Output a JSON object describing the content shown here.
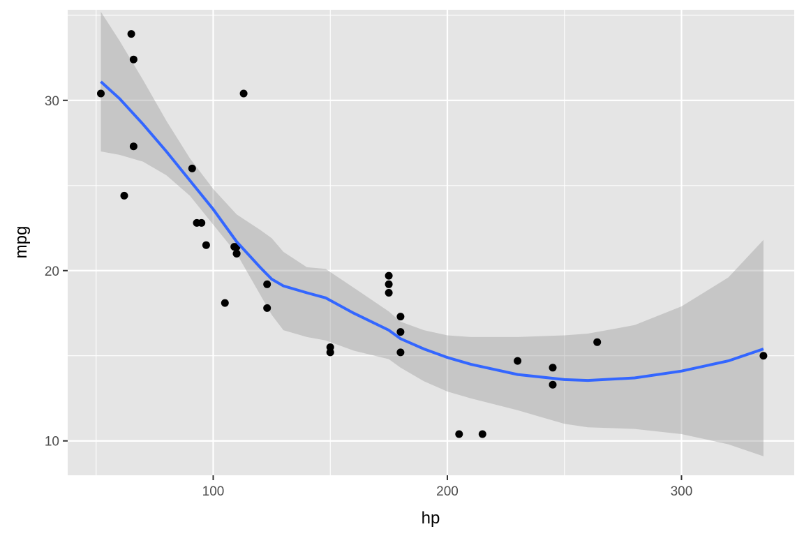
{
  "chart_data": {
    "type": "scatter",
    "title": "",
    "xlabel": "hp",
    "ylabel": "mpg",
    "xlim": [
      37.85,
      348.15
    ],
    "ylim": [
      7.98,
      35.32
    ],
    "x_ticks": [
      100,
      200,
      300
    ],
    "y_ticks": [
      10,
      20,
      30
    ],
    "grid": true,
    "legend": "none",
    "colors": {
      "panel": "#e5e5e5",
      "grid": "#ffffff",
      "points": "#000000",
      "smooth_line": "#3366ff",
      "ribbon": "#999999"
    },
    "points": {
      "x": [
        110,
        110,
        93,
        110,
        175,
        105,
        245,
        62,
        95,
        123,
        123,
        180,
        180,
        180,
        205,
        215,
        230,
        66,
        52,
        65,
        97,
        150,
        150,
        245,
        175,
        66,
        91,
        113,
        264,
        175,
        335,
        109
      ],
      "y": [
        21.0,
        21.0,
        22.8,
        21.4,
        18.7,
        18.1,
        14.3,
        24.4,
        22.8,
        19.2,
        17.8,
        16.4,
        17.3,
        15.2,
        10.4,
        10.4,
        14.7,
        32.4,
        30.4,
        33.9,
        21.5,
        15.5,
        15.2,
        13.3,
        19.2,
        27.3,
        26.0,
        30.4,
        15.8,
        19.7,
        15.0,
        21.4
      ]
    },
    "smooth": {
      "method": "loess",
      "x": [
        52,
        60,
        70,
        80,
        90,
        100,
        110,
        120,
        125,
        130,
        140,
        148,
        160,
        175,
        180,
        190,
        200,
        210,
        230,
        250,
        260,
        280,
        300,
        320,
        335
      ],
      "y": [
        31.1,
        30.1,
        28.6,
        27.0,
        25.3,
        23.6,
        21.7,
        20.2,
        19.5,
        19.1,
        18.7,
        18.4,
        17.5,
        16.5,
        16.0,
        15.4,
        14.9,
        14.5,
        13.9,
        13.6,
        13.55,
        13.7,
        14.1,
        14.7,
        15.4
      ],
      "lower": [
        27.0,
        26.8,
        26.4,
        25.6,
        24.4,
        22.7,
        21.0,
        18.6,
        17.4,
        16.5,
        16.1,
        15.9,
        15.3,
        14.8,
        14.3,
        13.5,
        12.9,
        12.5,
        11.8,
        11.0,
        10.8,
        10.7,
        10.4,
        9.8,
        9.1
      ],
      "upper": [
        35.2,
        33.5,
        31.2,
        28.8,
        26.6,
        24.8,
        23.3,
        22.4,
        21.9,
        21.1,
        20.2,
        20.1,
        19.0,
        17.6,
        17.0,
        16.5,
        16.2,
        16.1,
        16.1,
        16.2,
        16.3,
        16.8,
        17.9,
        19.6,
        21.8
      ]
    }
  }
}
